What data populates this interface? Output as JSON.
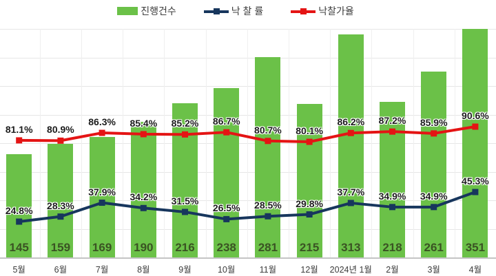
{
  "legend": [
    {
      "label": "진행건수",
      "color": "#6bc148",
      "type": "bar"
    },
    {
      "label": "낙 찰 률",
      "color": "#17365d",
      "type": "line"
    },
    {
      "label": "낙찰가율",
      "color": "#e41414",
      "type": "line"
    }
  ],
  "chart_data": {
    "type": "bar+line",
    "title": "",
    "categories": [
      "5월",
      "6월",
      "7월",
      "8월",
      "9월",
      "10월",
      "11월",
      "12월",
      "2024년 1월",
      "2월",
      "3월",
      "4월"
    ],
    "series": [
      {
        "name": "진행건수",
        "type": "bar",
        "color": "#6bc148",
        "value_label_color": "#3a5323",
        "values": [
          145,
          159,
          169,
          190,
          216,
          238,
          281,
          215,
          313,
          218,
          261,
          351
        ]
      },
      {
        "name": "낙 찰 률",
        "type": "line",
        "color": "#17365d",
        "unit": "%",
        "values": [
          24.8,
          28.3,
          37.9,
          34.2,
          31.5,
          26.5,
          28.5,
          29.8,
          37.7,
          34.9,
          34.9,
          45.3
        ]
      },
      {
        "name": "낙찰가율",
        "type": "line",
        "color": "#e41414",
        "unit": "%",
        "values": [
          81.1,
          80.9,
          86.3,
          85.4,
          85.2,
          86.7,
          80.7,
          80.1,
          86.2,
          87.2,
          85.9,
          90.6
        ]
      }
    ],
    "grid": true,
    "legend_position": "top-center",
    "background": "#ffffff"
  }
}
